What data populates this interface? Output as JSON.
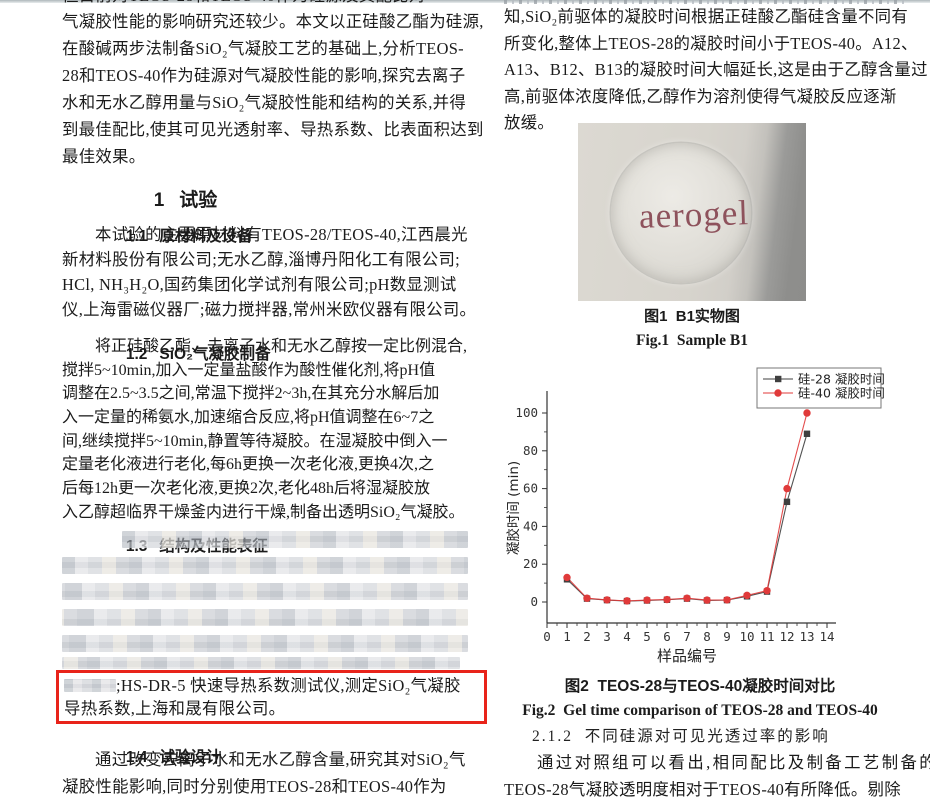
{
  "left": {
    "clipped_line": "但目前对TEOS-28和TEOS-40作为硅源及其配比对",
    "intro": [
      "气凝胶性能的影响研究还较少。本文以正硅酸乙酯为硅源,",
      "在酸碱两步法制备SiO₂气凝胶工艺的基础上,分析TEOS-",
      "28和TEOS-40作为硅源对气凝胶性能的影响,探究去离子",
      "水和无水乙醇用量与SiO₂气凝胶性能和结构的关系,并得",
      "到最佳配比,使其可见光透射率、导热系数、比表面积达到",
      "最佳效果。"
    ],
    "sec1": {
      "num": "1",
      "title": "试验"
    },
    "sec11": {
      "num": "1.1",
      "title": "原材料及设备"
    },
    "sec11_lines": [
      "本试验的主要原材料有TEOS-28/TEOS-40,江西晨光",
      "新材料股份有限公司;无水乙醇,淄博丹阳化工有限公司;",
      "HCl, NH₃H₂O,国药集团化学试剂有限公司;pH数显测试",
      "仪,上海雷磁仪器厂;磁力搅拌器,常州米欧仪器有限公司。"
    ],
    "sec12": {
      "num": "1.2",
      "title": "SiO₂气凝胶制备"
    },
    "sec12_lines": [
      "将正硅酸乙酯、去离子水和无水乙醇按一定比例混合,",
      "搅拌5~10min,加入一定量盐酸作为酸性催化剂,将pH值",
      "调整在2.5~3.5之间,常温下搅拌2~3h,在其充分水解后加",
      "入一定量的稀氨水,加速缩合反应,将pH值调整在6~7之",
      "间,继续搅拌5~10min,静置等待凝胶。在湿凝胶中倒入一",
      "定量老化液进行老化,每6h更换一次老化液,更换4次,之",
      "后每12h更一次老化液,更换2次,老化48h后将湿凝胶放",
      "入乙醇超临界干燥釜内进行干燥,制备出透明SiO₂气凝胶。"
    ],
    "sec13": {
      "num": "1.3",
      "title": "结构及性能表征"
    },
    "highlight": {
      "line1": ";HS-DR-5 快速导热系数测试仪,测定SiO₂气凝胶",
      "line2": "导热系数,上海和晟有限公司。"
    },
    "sec14": {
      "num": "1.4",
      "title": "试验设计"
    },
    "sec14_lines": [
      "通过改变去离子水和无水乙醇含量,研究其对SiO₂气",
      "凝胶性能影响,同时分别使用TEOS-28和TEOS-40作为"
    ]
  },
  "right": {
    "para": [
      "知,SiO₂前驱体的凝胶时间根据正硅酸乙酯硅含量不同有",
      "所变化,整体上TEOS-28的凝胶时间小于TEOS-40。A12、",
      "A13、B12、B13的凝胶时间大幅延长,这是由于乙醇含量过",
      "高,前驱体浓度降低,乙醇作为溶剂使得气凝胶反应逐渐",
      "放缓。"
    ],
    "fig1": {
      "caption_zh": "图1  B1实物图",
      "caption_en": "Fig.1  Sample B1",
      "photo_label": "aerogel"
    },
    "fig2": {
      "caption_zh": "图2  TEOS-28与TEOS-40凝胶时间对比",
      "caption_en": "Fig.2  Gel time comparison of TEOS-28 and TEOS-40"
    },
    "sec212": {
      "heading": "2.1.2  不同硅源对可见光透过率的影响"
    },
    "sec212_lines": [
      "通过对照组可以看出,相同配比及制备工艺制备的",
      "TEOS-28气凝胶透明度相对于TEOS-40有所降低。剔除"
    ]
  },
  "colors": {
    "highlight_box": "#e8231a",
    "series_28": "#3f3f3f",
    "series_40": "#e03a3a",
    "aerogel_text": "#8e525c",
    "axis": "#333333"
  },
  "chart_data": {
    "type": "line",
    "title": "",
    "xlabel": "样品编号",
    "ylabel": "凝胶时间 (min)",
    "x": [
      1,
      2,
      3,
      4,
      5,
      6,
      7,
      8,
      9,
      10,
      11,
      12,
      13
    ],
    "xlim": [
      0,
      14
    ],
    "ylim": [
      0,
      100
    ],
    "x_ticks": [
      0,
      1,
      2,
      3,
      4,
      5,
      6,
      7,
      8,
      9,
      10,
      11,
      12,
      13,
      14
    ],
    "y_ticks": [
      0,
      20,
      40,
      60,
      80,
      100
    ],
    "y_minor_ticks": [
      10,
      30,
      50,
      70,
      90
    ],
    "grid": false,
    "legend_position": "top-right",
    "series": [
      {
        "name": "硅-28 凝胶时间",
        "marker": "square",
        "color": "#3f3f3f",
        "values": [
          12,
          1.8,
          1.0,
          0.5,
          0.8,
          1.2,
          1.8,
          0.8,
          1.0,
          3.0,
          5.5,
          53,
          89
        ]
      },
      {
        "name": "硅-40 凝胶时间",
        "marker": "circle",
        "color": "#e03a3a",
        "values": [
          13,
          2.0,
          1.1,
          0.6,
          1.0,
          1.3,
          2.0,
          1.0,
          1.1,
          3.5,
          6.0,
          60,
          100
        ]
      }
    ]
  }
}
